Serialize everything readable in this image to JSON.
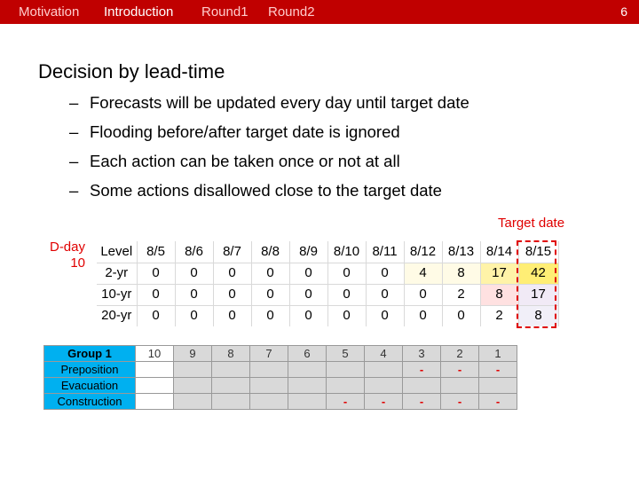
{
  "nav": {
    "items": [
      "Motivation",
      "Introduction",
      "Round1",
      "Round2"
    ],
    "active": "Introduction",
    "slide_number": "6"
  },
  "title": "Decision by lead-time",
  "bullets": [
    "Forecasts will be updated every day until target date",
    "Flooding before/after target date is ignored",
    "Each action can be taken once or not at all",
    "Some actions disallowed close to the target date"
  ],
  "bullet_marker": "–",
  "target_label": "Target date",
  "dday": {
    "line1": "D-day",
    "line2": "10"
  },
  "forecast_table": {
    "header_label": "Level",
    "dates": [
      "8/5",
      "8/6",
      "8/7",
      "8/8",
      "8/9",
      "8/10",
      "8/11",
      "8/12",
      "8/13",
      "8/14",
      "8/15"
    ],
    "rows": [
      {
        "label": "2-yr",
        "values": [
          "0",
          "0",
          "0",
          "0",
          "0",
          "0",
          "0",
          "4",
          "8",
          "17",
          "42"
        ]
      },
      {
        "label": "10-yr",
        "values": [
          "0",
          "0",
          "0",
          "0",
          "0",
          "0",
          "0",
          "0",
          "2",
          "8",
          "17"
        ]
      },
      {
        "label": "20-yr",
        "values": [
          "0",
          "0",
          "0",
          "0",
          "0",
          "0",
          "0",
          "0",
          "0",
          "2",
          "8"
        ]
      }
    ],
    "cell_colors": {
      "2-yr": {
        "8/12": "#fffbe6",
        "8/13": "#fffbe6",
        "8/14": "#fff3a8",
        "8/15": "#ffee75"
      },
      "10-yr": {
        "8/14": "#ffe1e1",
        "8/15": "#f1eaf6"
      },
      "20-yr": {
        "8/15": "#f1eff8"
      }
    }
  },
  "group_table": {
    "title": "Group 1",
    "days": [
      "10",
      "9",
      "8",
      "7",
      "6",
      "5",
      "4",
      "3",
      "2",
      "1"
    ],
    "rows": [
      {
        "label": "Preposition",
        "cells": [
          "",
          "",
          "",
          "",
          "",
          "",
          "",
          "-",
          "-",
          "-"
        ]
      },
      {
        "label": "Evacuation",
        "cells": [
          "",
          "",
          "",
          "",
          "",
          "",
          "",
          "",
          "",
          ""
        ]
      },
      {
        "label": "Construction",
        "cells": [
          "",
          "",
          "",
          "",
          "",
          "-",
          "-",
          "-",
          "-",
          "-"
        ]
      }
    ]
  },
  "colors": {
    "accent": "#c00000",
    "highlight_red": "#e00000",
    "group_header": "#00b0f0"
  }
}
